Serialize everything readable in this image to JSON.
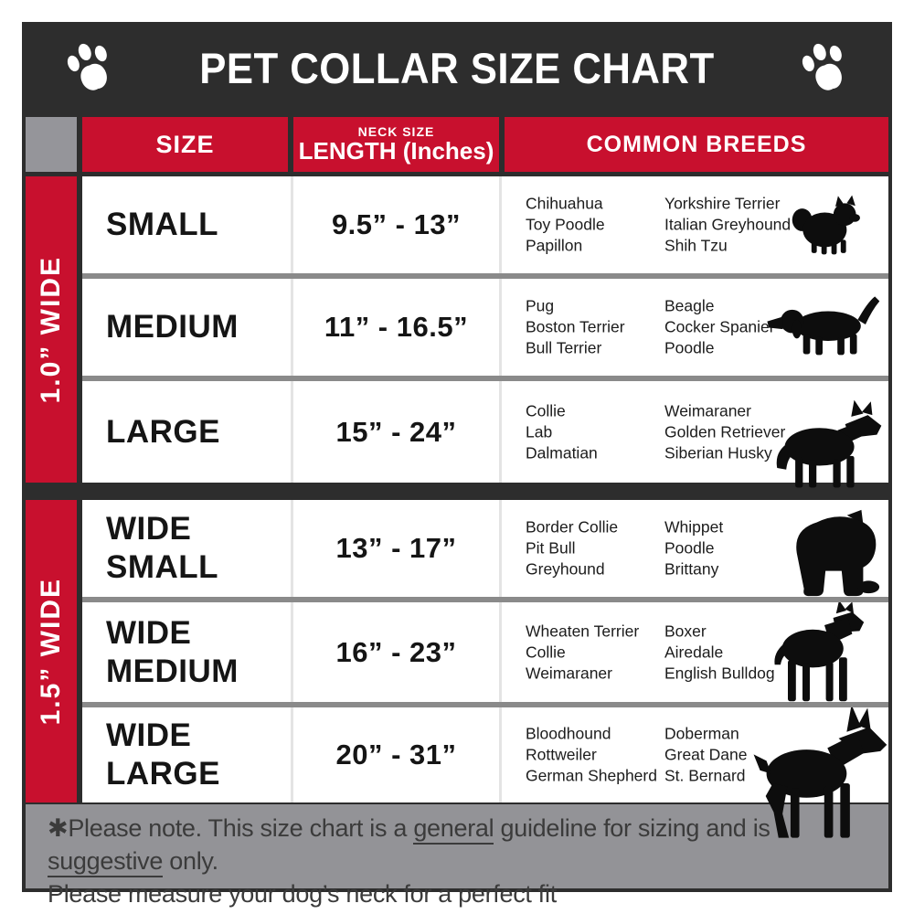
{
  "chart_data": {
    "type": "table",
    "title": "PET COLLAR SIZE CHART",
    "columns": {
      "size": "SIZE",
      "neck_size_note": "NECK SIZE",
      "length": "LENGTH (Inches)",
      "breeds": "COMMON BREEDS"
    },
    "sections": [
      {
        "width_label": "1.0” WIDE",
        "rows": [
          {
            "size": "SMALL",
            "length": "9.5” - 13”",
            "breeds_col1": [
              "Chihuahua",
              "Toy Poodle",
              "Papillon"
            ],
            "breeds_col2": [
              "Yorkshire Terrier",
              "Italian Greyhound",
              "Shih Tzu"
            ],
            "dog_icon": "pomeranian-silhouette"
          },
          {
            "size": "MEDIUM",
            "length": "11” - 16.5”",
            "breeds_col1": [
              "Pug",
              "Boston Terrier",
              "Bull Terrier"
            ],
            "breeds_col2": [
              "Beagle",
              "Cocker Spaniel",
              "Poodle"
            ],
            "dog_icon": "beagle-silhouette"
          },
          {
            "size": "LARGE",
            "length": "15” - 24”",
            "breeds_col1": [
              "Collie",
              "Lab",
              "Dalmatian"
            ],
            "breeds_col2": [
              "Weimaraner",
              "Golden Retriever",
              "Siberian Husky"
            ],
            "dog_icon": "husky-silhouette"
          }
        ]
      },
      {
        "width_label": "1.5” WIDE",
        "rows": [
          {
            "size": "WIDE SMALL",
            "length": "13” - 17”",
            "breeds_col1": [
              "Border Collie",
              "Pit Bull",
              "Greyhound"
            ],
            "breeds_col2": [
              "Whippet",
              "Poodle",
              "Brittany"
            ],
            "dog_icon": "bulldog-silhouette"
          },
          {
            "size": "WIDE MEDIUM",
            "length": "16” - 23”",
            "breeds_col1": [
              "Wheaten Terrier",
              "Collie",
              "Weimaraner"
            ],
            "breeds_col2": [
              "Boxer",
              "Airedale",
              "English Bulldog"
            ],
            "dog_icon": "pitbull-silhouette"
          },
          {
            "size": "WIDE LARGE",
            "length": "20” - 31”",
            "breeds_col1": [
              "Bloodhound",
              "Rottweiler",
              "German Shepherd"
            ],
            "breeds_col2": [
              "Doberman",
              "Great Dane",
              "St. Bernard"
            ],
            "dog_icon": "doberman-silhouette"
          }
        ]
      }
    ]
  },
  "footer": {
    "line1_segments": [
      {
        "text": "✱Please note. This size chart is a ",
        "underline": false
      },
      {
        "text": "general",
        "underline": true
      },
      {
        "text": " guideline for sizing and is ",
        "underline": false
      },
      {
        "text": "suggestive",
        "underline": true
      },
      {
        "text": " only.",
        "underline": false
      }
    ],
    "line2": "Please measure your dog’s neck for a perfect fit"
  },
  "colors": {
    "accent_red": "#c8102e",
    "header_dark": "#2d2d2d",
    "gray_panel": "#939397"
  }
}
